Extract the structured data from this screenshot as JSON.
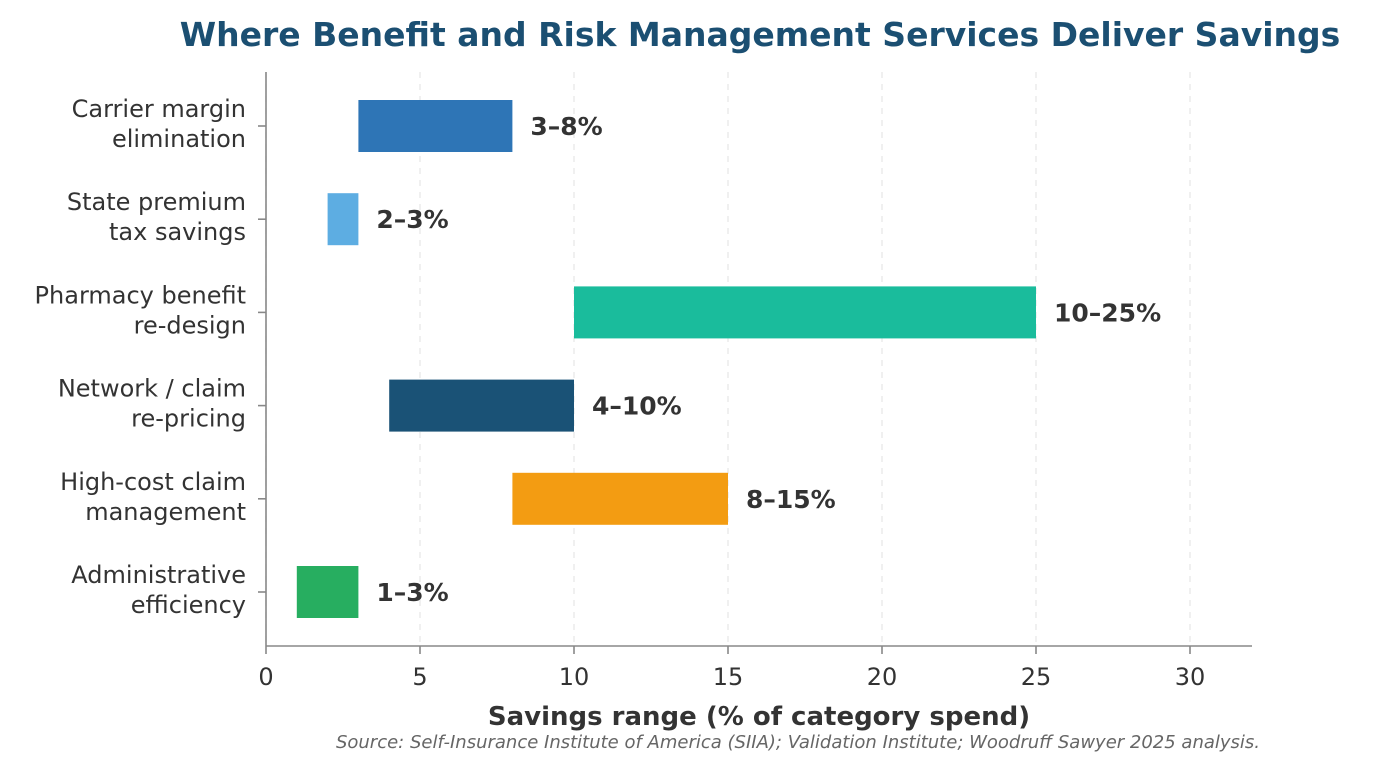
{
  "chart_data": {
    "type": "bar",
    "orientation": "horizontal-range",
    "title": "Where Benefit and Risk Management Services Deliver Savings",
    "xlabel": "Savings range (% of category spend)",
    "ylabel": "",
    "xlim": [
      0,
      32
    ],
    "xticks": [
      0,
      5,
      10,
      15,
      20,
      25,
      30
    ],
    "grid": "x-dashed",
    "source": "Source: Self-Insurance Institute of America (SIIA); Validation Institute; Woodruff Sawyer 2025 analysis.",
    "categories": [
      [
        "Carrier margin",
        "elimination"
      ],
      [
        "State premium",
        "tax savings"
      ],
      [
        "Pharmacy benefit",
        "re-design"
      ],
      [
        "Network / claim",
        "re-pricing"
      ],
      [
        "High-cost claim",
        "management"
      ],
      [
        "Administrative",
        "efficiency"
      ]
    ],
    "ranges": [
      {
        "low": 3,
        "high": 8,
        "label": "3–8%",
        "color": "#2e75b6"
      },
      {
        "low": 2,
        "high": 3,
        "label": "2–3%",
        "color": "#5dade2"
      },
      {
        "low": 10,
        "high": 25,
        "label": "10–25%",
        "color": "#1abc9c"
      },
      {
        "low": 4,
        "high": 10,
        "label": "4–10%",
        "color": "#1a5276"
      },
      {
        "low": 8,
        "high": 15,
        "label": "8–15%",
        "color": "#f39c12"
      },
      {
        "low": 1,
        "high": 3,
        "label": "1–3%",
        "color": "#27ae60"
      }
    ]
  }
}
